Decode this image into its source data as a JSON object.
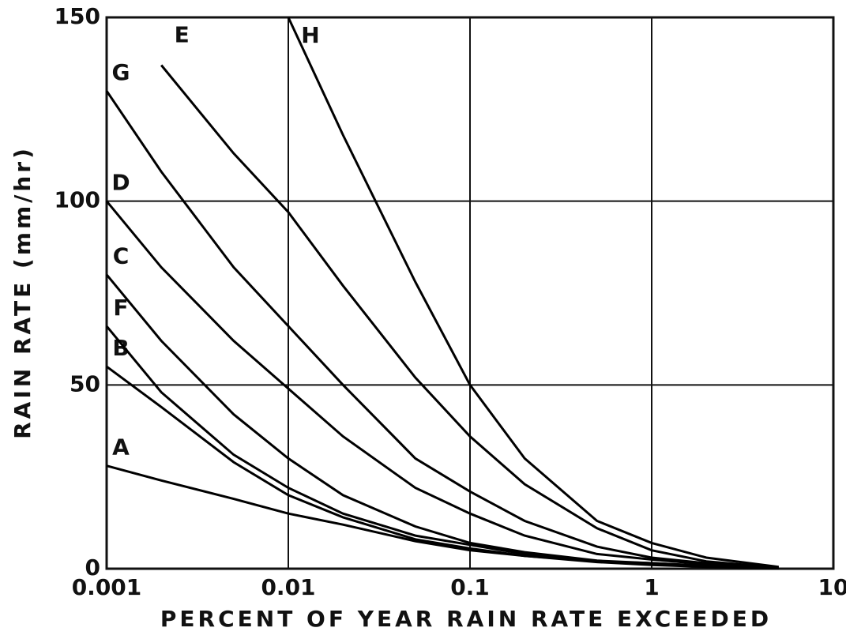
{
  "chart_data": {
    "type": "line",
    "xlabel": "PERCENT OF YEAR RAIN RATE EXCEEDED",
    "ylabel": "RAIN RATE (mm/hr)",
    "xscale": "log",
    "x": [
      0.001,
      0.002,
      0.005,
      0.01,
      0.02,
      0.05,
      0.1,
      0.2,
      0.5,
      1,
      2,
      5
    ],
    "series": [
      {
        "name": "A",
        "color": "#000000",
        "values": [
          28,
          24,
          19,
          15,
          12,
          7.5,
          5,
          3.5,
          2,
          1.5,
          0.8,
          0.2
        ]
      },
      {
        "name": "B",
        "color": "#000000",
        "values": [
          55,
          44,
          29,
          20,
          14,
          8,
          5.5,
          3.5,
          1.8,
          1,
          0.5,
          0.1
        ]
      },
      {
        "name": "F",
        "color": "#000000",
        "values": [
          66,
          48,
          31,
          22,
          15,
          9,
          6.5,
          4,
          2,
          1.2,
          0.6,
          0.1
        ]
      },
      {
        "name": "C",
        "color": "#000000",
        "values": [
          80,
          62,
          42,
          30,
          20,
          11.5,
          7,
          4.5,
          2.2,
          1.5,
          0.8,
          0.1
        ]
      },
      {
        "name": "D",
        "color": "#000000",
        "values": [
          100,
          82,
          62,
          49,
          36,
          22,
          15,
          9,
          4,
          2.5,
          1.2,
          0.2
        ]
      },
      {
        "name": "G",
        "color": "#000000",
        "values": [
          130,
          108,
          82,
          66,
          50,
          30,
          21,
          13,
          6,
          3,
          1.5,
          0.2
        ]
      },
      {
        "name": "E",
        "color": "#000000",
        "values": [
          null,
          137,
          113,
          97,
          77,
          52,
          36,
          23,
          11,
          5,
          2,
          0.3
        ]
      },
      {
        "name": "H",
        "color": "#000000",
        "values": [
          null,
          null,
          null,
          150,
          118,
          78,
          50,
          30,
          13,
          7,
          3,
          0.5
        ]
      }
    ],
    "xlim": [
      0.001,
      10
    ],
    "xticks": [
      0.001,
      0.01,
      0.1,
      1,
      10
    ],
    "ylim": [
      0,
      150
    ],
    "yticks": [
      0,
      50,
      100,
      150
    ],
    "grid": true
  }
}
